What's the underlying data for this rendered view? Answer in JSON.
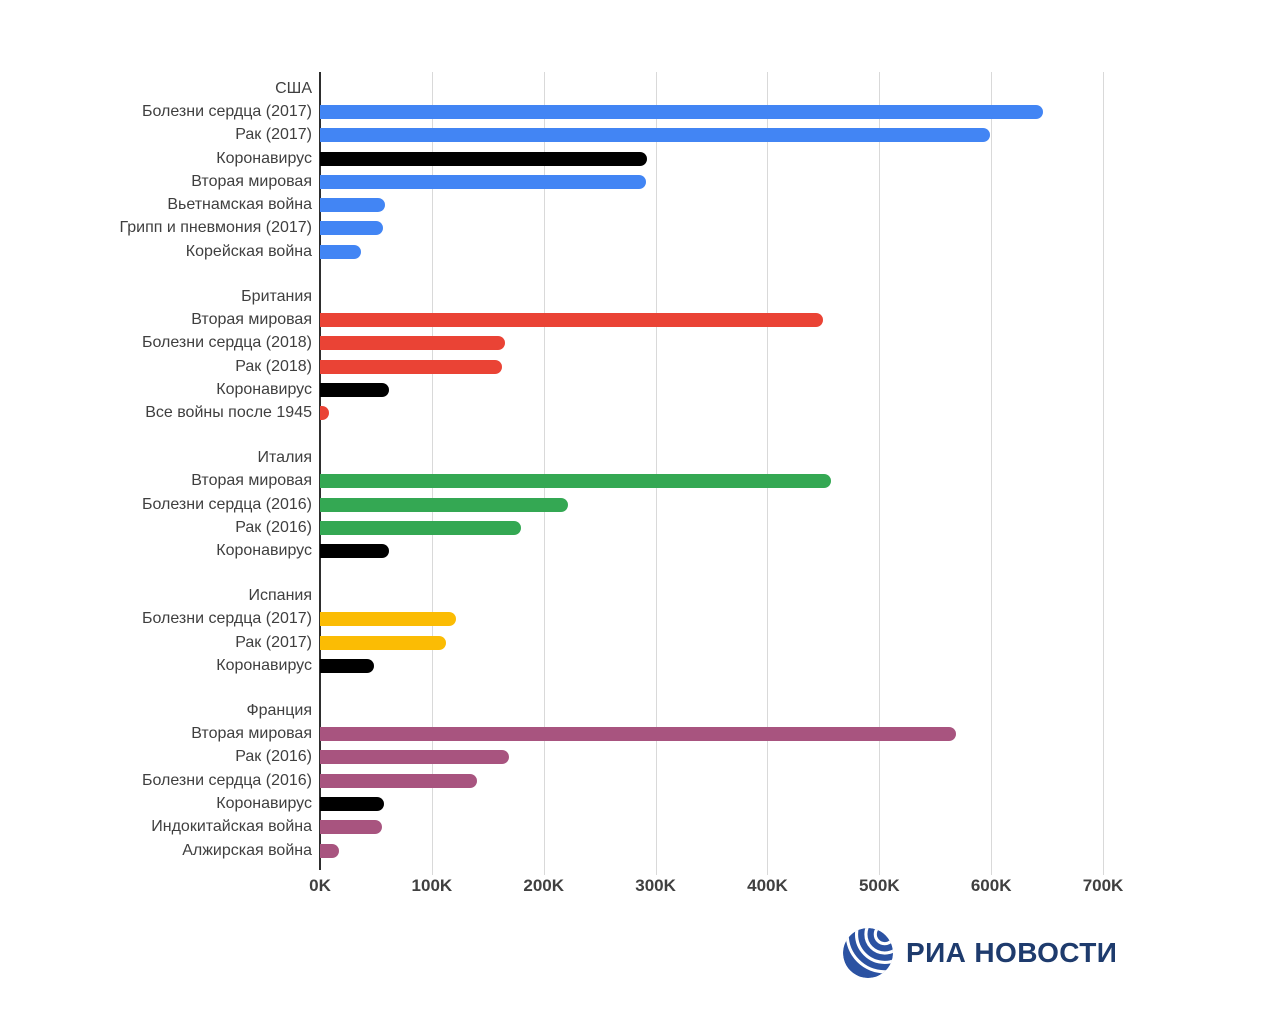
{
  "chart_data": {
    "type": "bar",
    "orientation": "horizontal",
    "title": "",
    "xlabel": "",
    "ylabel": "",
    "values_in": "thousands",
    "value_suffix": "K",
    "xlim": [
      0,
      700
    ],
    "grid": true,
    "x_tick_values": [
      0,
      100,
      200,
      300,
      400,
      500,
      600,
      700
    ],
    "x_tick_labels": [
      "0K",
      "100K",
      "200K",
      "300K",
      "400K",
      "500K",
      "600K",
      "700K"
    ],
    "covid_bar_color": "#000000",
    "groups": [
      {
        "country": "США",
        "color": "#4285F4",
        "rows": [
          {
            "label": "Болезни сердца (2017)",
            "value": 646
          },
          {
            "label": "Рак (2017)",
            "value": 599
          },
          {
            "label": "Коронавирус",
            "value": 292,
            "covid": true
          },
          {
            "label": "Вторая мировая",
            "value": 291
          },
          {
            "label": "Вьетнамская война",
            "value": 58
          },
          {
            "label": "Грипп и пневмония (2017)",
            "value": 56
          },
          {
            "label": "Корейская война",
            "value": 37
          }
        ]
      },
      {
        "country": "Британия",
        "color": "#EA4335",
        "rows": [
          {
            "label": "Вторая мировая",
            "value": 450
          },
          {
            "label": "Болезни сердца (2018)",
            "value": 165
          },
          {
            "label": "Рак (2018)",
            "value": 163
          },
          {
            "label": "Коронавирус",
            "value": 62,
            "covid": true
          },
          {
            "label": "Все войны после 1945",
            "value": 8
          }
        ]
      },
      {
        "country": "Италия",
        "color": "#34A853",
        "rows": [
          {
            "label": "Вторая мировая",
            "value": 457
          },
          {
            "label": "Болезни сердца (2016)",
            "value": 222
          },
          {
            "label": "Рак (2016)",
            "value": 180
          },
          {
            "label": "Коронавирус",
            "value": 62,
            "covid": true
          }
        ]
      },
      {
        "country": "Испания",
        "color": "#FBBC04",
        "rows": [
          {
            "label": "Болезни сердца (2017)",
            "value": 122
          },
          {
            "label": "Рак (2017)",
            "value": 113
          },
          {
            "label": "Коронавирус",
            "value": 48,
            "covid": true
          }
        ]
      },
      {
        "country": "Франция",
        "color": "#A8547F",
        "rows": [
          {
            "label": "Вторая мировая",
            "value": 569
          },
          {
            "label": "Рак (2016)",
            "value": 169
          },
          {
            "label": "Болезни сердца (2016)",
            "value": 140
          },
          {
            "label": "Коронавирус",
            "value": 57,
            "covid": true
          },
          {
            "label": "Индокитайская война",
            "value": 55
          },
          {
            "label": "Алжирская война",
            "value": 17
          }
        ]
      }
    ]
  },
  "colors": {
    "background": "#ffffff",
    "gridline": "#d9d9d9",
    "axis_line": "#2e2e2e",
    "label_text": "#3f3f3f",
    "tick_text": "#404040"
  },
  "logo": {
    "text": "РИА НОВОСТИ",
    "text_color": "#1E3B6D",
    "globe_color": "#2B52A2"
  }
}
